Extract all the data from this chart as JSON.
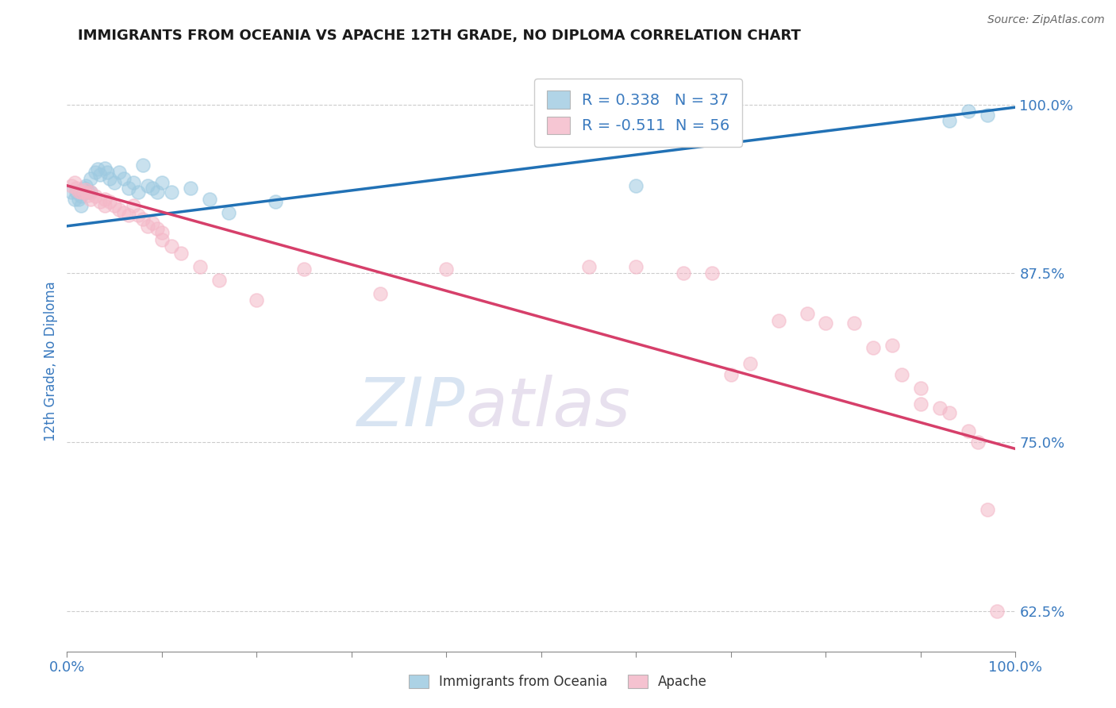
{
  "title": "IMMIGRANTS FROM OCEANIA VS APACHE 12TH GRADE, NO DIPLOMA CORRELATION CHART",
  "source": "Source: ZipAtlas.com",
  "ylabel": "12th Grade, No Diploma",
  "legend_label1": "Immigrants from Oceania",
  "legend_label2": "Apache",
  "R1": 0.338,
  "N1": 37,
  "R2": -0.511,
  "N2": 56,
  "xlim": [
    0.0,
    1.0
  ],
  "ylim": [
    0.595,
    1.025
  ],
  "xtick_positions": [
    0.0,
    0.1,
    0.2,
    0.3,
    0.4,
    0.5,
    0.6,
    0.7,
    0.8,
    0.9,
    1.0
  ],
  "xtick_labels_show": [
    "0.0%",
    "",
    "",
    "",
    "",
    "",
    "",
    "",
    "",
    "",
    "100.0%"
  ],
  "ytick_positions": [
    0.625,
    0.75,
    0.875,
    1.0
  ],
  "ytick_labels": [
    "62.5%",
    "75.0%",
    "87.5%",
    "100.0%"
  ],
  "color_blue": "#9ecae1",
  "color_pink": "#f4b8c8",
  "line_blue": "#2171b5",
  "line_pink": "#d63f6a",
  "blue_dots_x": [
    0.005,
    0.008,
    0.01,
    0.012,
    0.015,
    0.015,
    0.018,
    0.02,
    0.022,
    0.025,
    0.025,
    0.03,
    0.032,
    0.035,
    0.04,
    0.042,
    0.045,
    0.05,
    0.055,
    0.06,
    0.065,
    0.07,
    0.075,
    0.08,
    0.085,
    0.09,
    0.095,
    0.1,
    0.11,
    0.13,
    0.15,
    0.17,
    0.22,
    0.6,
    0.93,
    0.95,
    0.97
  ],
  "blue_dots_y": [
    0.935,
    0.93,
    0.935,
    0.93,
    0.932,
    0.925,
    0.938,
    0.94,
    0.935,
    0.945,
    0.935,
    0.95,
    0.952,
    0.948,
    0.953,
    0.95,
    0.945,
    0.942,
    0.95,
    0.945,
    0.938,
    0.942,
    0.935,
    0.955,
    0.94,
    0.938,
    0.935,
    0.942,
    0.935,
    0.938,
    0.93,
    0.92,
    0.928,
    0.94,
    0.988,
    0.995,
    0.992
  ],
  "pink_dots_x": [
    0.005,
    0.008,
    0.01,
    0.012,
    0.015,
    0.018,
    0.02,
    0.022,
    0.025,
    0.025,
    0.03,
    0.035,
    0.04,
    0.04,
    0.045,
    0.05,
    0.055,
    0.06,
    0.065,
    0.07,
    0.075,
    0.08,
    0.085,
    0.09,
    0.095,
    0.1,
    0.1,
    0.11,
    0.12,
    0.14,
    0.16,
    0.2,
    0.25,
    0.33,
    0.4,
    0.55,
    0.6,
    0.65,
    0.68,
    0.7,
    0.72,
    0.75,
    0.78,
    0.8,
    0.83,
    0.85,
    0.87,
    0.88,
    0.9,
    0.9,
    0.92,
    0.93,
    0.95,
    0.96,
    0.97,
    0.98
  ],
  "pink_dots_y": [
    0.94,
    0.942,
    0.938,
    0.936,
    0.935,
    0.935,
    0.937,
    0.933,
    0.935,
    0.93,
    0.932,
    0.928,
    0.93,
    0.925,
    0.928,
    0.925,
    0.922,
    0.92,
    0.918,
    0.925,
    0.918,
    0.915,
    0.91,
    0.912,
    0.908,
    0.905,
    0.9,
    0.895,
    0.89,
    0.88,
    0.87,
    0.855,
    0.878,
    0.86,
    0.878,
    0.88,
    0.88,
    0.875,
    0.875,
    0.8,
    0.808,
    0.84,
    0.845,
    0.838,
    0.838,
    0.82,
    0.822,
    0.8,
    0.79,
    0.778,
    0.775,
    0.772,
    0.758,
    0.75,
    0.7,
    0.625
  ],
  "blue_line_x": [
    0.0,
    1.0
  ],
  "blue_line_y": [
    0.91,
    0.998
  ],
  "pink_line_x": [
    0.0,
    1.0
  ],
  "pink_line_y": [
    0.94,
    0.745
  ],
  "watermark_zip": "ZIP",
  "watermark_atlas": "atlas",
  "title_color": "#1a1a1a",
  "axis_label_color": "#3a7abf",
  "tick_label_color": "#3a7abf",
  "grid_color": "#cccccc"
}
